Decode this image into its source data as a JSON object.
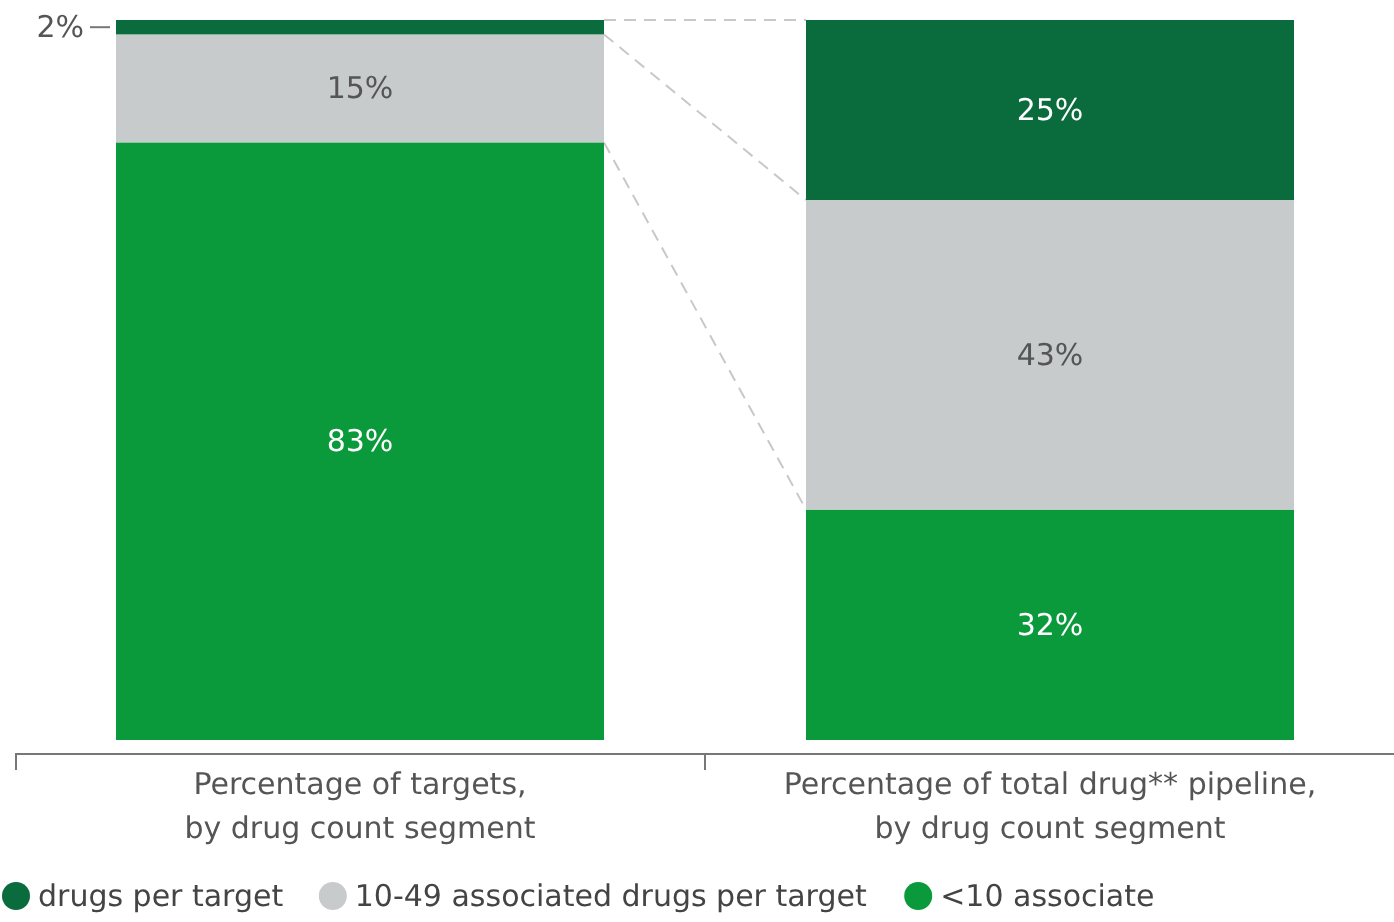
{
  "chart_data": {
    "type": "bar",
    "stacked": true,
    "categories": [
      "Percentage of targets,\nby drug count segment",
      "Percentage of total drug** pipeline,\nby drug count segment"
    ],
    "series": [
      {
        "name": "<10 associate",
        "color": "#0a9a3c",
        "values": [
          83,
          32
        ],
        "value_labels": [
          "83%",
          "32%"
        ]
      },
      {
        "name": "10-49 associated drugs per target",
        "color": "#c8cbcc",
        "values": [
          15,
          43
        ],
        "value_labels": [
          "15%",
          "43%"
        ]
      },
      {
        "name": "drugs per target",
        "color": "#0a6b3c",
        "values": [
          2,
          25
        ],
        "value_labels": [
          "2%",
          "25%"
        ]
      }
    ],
    "legend": "bottom"
  }
}
